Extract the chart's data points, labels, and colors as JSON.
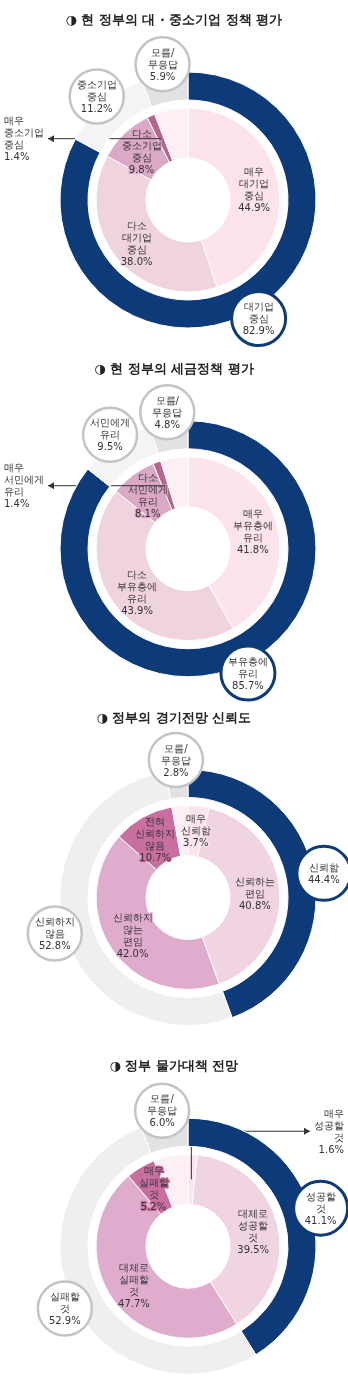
{
  "chart_data": [
    {
      "type": "donut",
      "title": "◑ 현 정부의 대 · 중소기업 정책 평가",
      "categories": [
        "대기업 중심",
        "중소기업 중심",
        "모름/무응답"
      ],
      "values": [
        82.9,
        11.2,
        5.9
      ],
      "value_labels": [
        "82.9%",
        "11.2%",
        "5.9%"
      ],
      "colors": [
        "#0d3b7a",
        "#f4f4f4",
        "#e2e2e2"
      ]
    },
    {
      "type": "donut",
      "categories": [
        "매우 대기업 중심",
        "다소 대기업 중심",
        "다소 중소기업 중심",
        "매우 중소기업 중심",
        null
      ],
      "values": [
        44.9,
        38.0,
        9.8,
        1.4,
        5.9
      ],
      "value_labels": [
        "44.9%",
        "38.0%",
        "9.8%",
        "1.4%",
        null
      ],
      "colors": [
        "#fce3ec",
        "#efd3df",
        "#dba8c6",
        "#b7648f",
        "#fdf0f4"
      ]
    },
    {
      "type": "donut",
      "title": "◑ 현 정부의 세금정책 평가",
      "categories": [
        "부유층에 유리",
        "서민에게 유리",
        "모름/무응답"
      ],
      "values": [
        85.7,
        9.5,
        4.8
      ],
      "value_labels": [
        "85.7%",
        "9.5%",
        "4.8%"
      ],
      "colors": [
        "#0d3b7a",
        "#f4f4f4",
        "#e2e2e2"
      ]
    },
    {
      "type": "donut",
      "categories": [
        "매우 부유층에 유리",
        "다소 부유층에 유리",
        "다소 서민에게 유리",
        "매우 서민에게 유리",
        null
      ],
      "values": [
        41.8,
        43.9,
        8.1,
        1.4,
        4.8
      ],
      "value_labels": [
        "41.8%",
        "43.9%",
        "8.1%",
        "1.4%",
        null
      ],
      "colors": [
        "#fce3ec",
        "#efd3df",
        "#dba8c6",
        "#b7648f",
        "#fdf0f4"
      ]
    },
    {
      "type": "donut",
      "title": "◑ 정부의 경기전망 신뢰도",
      "categories": [
        "신뢰함",
        "신뢰하지 않음",
        "모름/무응답"
      ],
      "values": [
        44.4,
        52.8,
        2.8
      ],
      "value_labels": [
        "44.4%",
        "52.8%",
        "2.8%"
      ],
      "colors": [
        "#0d3b7a",
        "#efefef",
        "#e2e2e2"
      ]
    },
    {
      "type": "donut",
      "categories": [
        "매우 신뢰함",
        "신뢰하는 편임",
        "신뢰하지 않는 편임",
        "전혀 신뢰하지 않음",
        null
      ],
      "values": [
        3.7,
        40.8,
        42.0,
        10.7,
        2.8
      ],
      "value_labels": [
        "3.7%",
        "40.8%",
        "42.0%",
        "10.7%",
        null
      ],
      "colors": [
        "#fce3ec",
        "#f1d4e1",
        "#e0acce",
        "#c96fa0",
        "#fdf0f4"
      ]
    },
    {
      "type": "donut",
      "title": "◑ 정부 물가대책 전망",
      "categories": [
        "성공할 것",
        "실패할 것",
        "모름/무응답"
      ],
      "values": [
        41.1,
        52.9,
        6.0
      ],
      "value_labels": [
        "41.1%",
        "52.9%",
        "6.0%"
      ],
      "colors": [
        "#0d3b7a",
        "#efefef",
        "#e2e2e2"
      ]
    },
    {
      "type": "donut",
      "categories": [
        "매우 성공할 것",
        "대체로 성공할 것",
        "대체로 실패할 것",
        "매우 실패할 것",
        null
      ],
      "values": [
        1.6,
        39.5,
        47.7,
        5.2,
        6.0
      ],
      "value_labels": [
        "1.6%",
        "39.5%",
        "47.7%",
        "5.2%",
        null
      ],
      "colors": [
        "#fce3ec",
        "#f1d4e1",
        "#e0acce",
        "#c96fa0",
        "#fdf0f4"
      ]
    }
  ]
}
